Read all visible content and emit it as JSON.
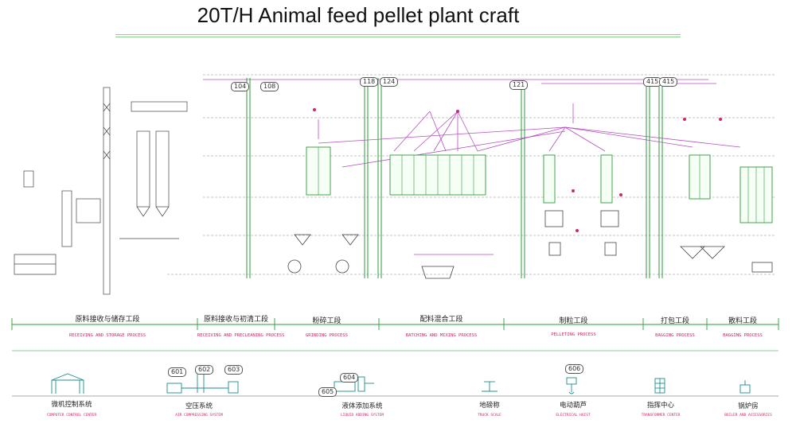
{
  "title": "20T/H Animal feed pellet plant craft",
  "sections": [
    {
      "cn": "原料接收与储存工段",
      "en": "RECEIVING AND STORAGE PROCESS"
    },
    {
      "cn": "原料接收与初清工段",
      "en": "RECEIVING AND PRECLEANING PROCESS"
    },
    {
      "cn": "粉碎工段",
      "en": "GRINDING PROCESS"
    },
    {
      "cn": "配料混合工段",
      "en": "BATCHING AND MIXING PROCESS"
    },
    {
      "cn": "制粒工段",
      "en": "PELLETING PROCESS"
    },
    {
      "cn": "打包工段",
      "en": "BAGGING PROCESS"
    },
    {
      "cn": "散料工段",
      "en": "BAGGING PROCESS"
    }
  ],
  "utilities": [
    {
      "cn": "微机控制系统",
      "en": "COMPUTER CONTROL CENTER",
      "icon": "computer-control-icon",
      "numbers": []
    },
    {
      "cn": "空压系统",
      "en": "AIR COMPRESSING SYSTEM",
      "icon": "air-compressor-icon",
      "numbers": [
        "601",
        "602",
        "603"
      ]
    },
    {
      "cn": "液体添加系统",
      "en": "LIQUID ADDING SYSTEM",
      "icon": "liquid-adding-icon",
      "numbers": [
        "604",
        "605"
      ]
    },
    {
      "cn": "地磅称",
      "en": "TRUCK SCALE",
      "icon": "truck-scale-icon",
      "numbers": []
    },
    {
      "cn": "电动葫芦",
      "en": "ELECTRICAL HOIST",
      "icon": "electric-hoist-icon",
      "numbers": [
        "606"
      ]
    },
    {
      "cn": "指挥中心",
      "en": "TRANSFORMER CENTER",
      "icon": "transformer-icon",
      "numbers": []
    },
    {
      "cn": "锅炉房",
      "en": "BOILER AND ACCESSORIES",
      "icon": "boiler-icon",
      "numbers": []
    }
  ],
  "top_labels": [
    "104",
    "108",
    "118",
    "124",
    "121",
    "415",
    "415"
  ],
  "colors": {
    "equipment": "#2e9b3b",
    "conveyor_line": "#b44fc0",
    "annotation": "#d0266a",
    "rule": "#8ad38a"
  }
}
